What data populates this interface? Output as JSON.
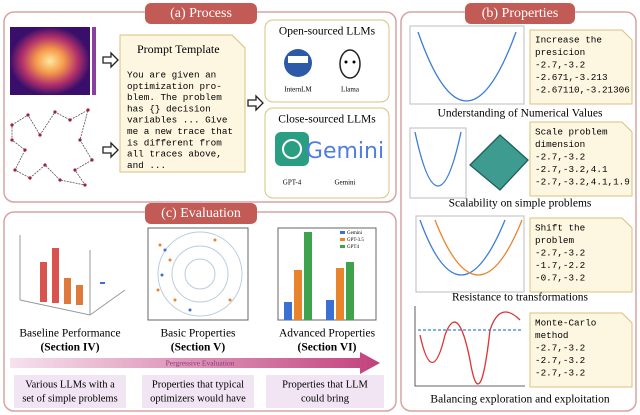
{
  "process": {
    "header": "(a) Process",
    "prompt": {
      "title": "Prompt Template",
      "lines": [
        "You are given an",
        "optimization pro-",
        "blem. The problem",
        "has {} decision",
        "variables ... Give",
        "me a new trace that",
        "is different from",
        "all traces above,",
        "and  ..."
      ]
    },
    "open": {
      "title": "Open-sourced LLMs",
      "models": [
        "InternLM",
        "Llama"
      ]
    },
    "close": {
      "title": "Close-sourced LLMs",
      "models": [
        "GPT-4",
        "Gemini"
      ]
    }
  },
  "evaluation": {
    "header": "(c) Evaluation",
    "stages": [
      {
        "name": "Baseline Performance",
        "section": "(Section IV)"
      },
      {
        "name": "Basic Properties",
        "section": "(Section V)"
      },
      {
        "name": "Advanced Properties",
        "section": "(Section VI)",
        "legend": [
          "Gemini",
          "GPT-3.5",
          "GPT4"
        ]
      }
    ],
    "arrow_label": "Pergressive Evaluation",
    "notes": [
      [
        "Various LLMs with a",
        "set of simple problems"
      ],
      [
        "Properties that typical",
        "optimizers would have"
      ],
      [
        "Properties that LLM",
        "could bring"
      ]
    ]
  },
  "properties": {
    "header": "(b) Properties",
    "items": [
      {
        "lines": [
          "Increase the",
          "presicion",
          "-2.7,-3.2",
          "-2.671,-3.213",
          "-2.67110,-3.21306"
        ],
        "caption": "Understanding of Numerical Values"
      },
      {
        "lines": [
          "Scale problem",
          "dimension",
          "-2.7,-3.2",
          "-2.7,-3.2,4.1",
          "-2.7,-3.2,4.1,1.9"
        ],
        "caption": "Scalability on simple problems"
      },
      {
        "lines": [
          "Shift the",
          "problem",
          "-2.7,-3.2",
          "-1.7,-2.2",
          "-0.7,-3.2"
        ],
        "caption": "Resistance to transformations"
      },
      {
        "lines": [
          "Monte-Carlo",
          "method",
          "-2.7,-3.2",
          "-2.7,-3.2",
          "-2.7,-3.2"
        ],
        "caption": "Balancing exploration and exploitation"
      }
    ]
  }
}
